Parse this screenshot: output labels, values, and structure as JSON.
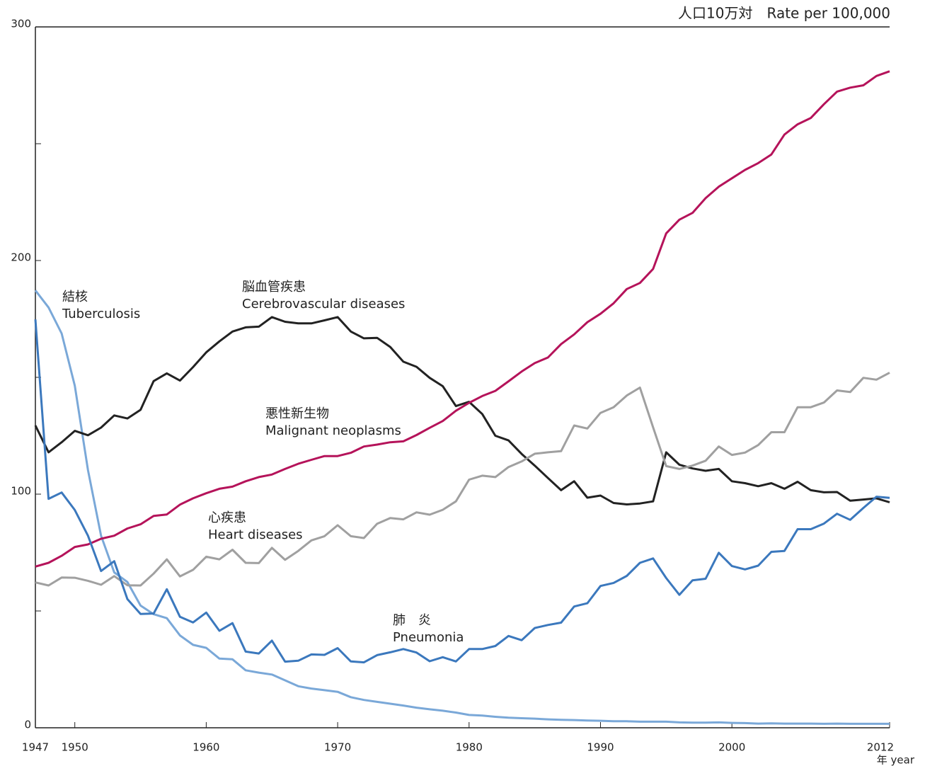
{
  "chart_data": {
    "type": "line",
    "y_unit": "人口10万対　Rate per 100,000",
    "x_unit": "年 year",
    "x": [
      1947,
      1948,
      1949,
      1950,
      1951,
      1952,
      1953,
      1954,
      1955,
      1956,
      1957,
      1958,
      1959,
      1960,
      1961,
      1962,
      1963,
      1964,
      1965,
      1966,
      1967,
      1968,
      1969,
      1970,
      1971,
      1972,
      1973,
      1974,
      1975,
      1976,
      1977,
      1978,
      1979,
      1980,
      1981,
      1982,
      1983,
      1984,
      1985,
      1986,
      1987,
      1988,
      1989,
      1990,
      1991,
      1992,
      1993,
      1994,
      1995,
      1996,
      1997,
      1998,
      1999,
      2000,
      2001,
      2002,
      2003,
      2004,
      2005,
      2006,
      2007,
      2008,
      2009,
      2010,
      2011,
      2012
    ],
    "xlim": [
      1947,
      2012
    ],
    "xticks": [
      1947,
      1950,
      1960,
      1970,
      1980,
      1990,
      2000,
      2012
    ],
    "ylim": [
      0,
      300
    ],
    "yticks": [
      0,
      100,
      200,
      300
    ],
    "yminorticks": [
      50,
      150,
      250
    ],
    "series": [
      {
        "name": "Tuberculosis",
        "name_ja": "結核",
        "color": "#7aa8d8",
        "values": [
          187.2,
          179.9,
          168.8,
          146.4,
          110.3,
          82.2,
          66.5,
          62.4,
          52.3,
          48.6,
          46.9,
          39.5,
          35.5,
          34.2,
          29.6,
          29.3,
          24.6,
          23.6,
          22.8,
          20.3,
          17.8,
          16.8,
          16.1,
          15.4,
          13.1,
          11.9,
          11.1,
          10.3,
          9.5,
          8.6,
          7.9,
          7.3,
          6.5,
          5.5,
          5.2,
          4.7,
          4.3,
          4.1,
          3.9,
          3.6,
          3.4,
          3.3,
          3.1,
          3.0,
          2.8,
          2.8,
          2.6,
          2.6,
          2.6,
          2.3,
          2.2,
          2.2,
          2.3,
          2.1,
          2.0,
          1.8,
          1.9,
          1.8,
          1.8,
          1.8,
          1.7,
          1.8,
          1.7,
          1.7,
          1.7,
          1.7
        ]
      },
      {
        "name": "Cerebrovascular diseases",
        "name_ja": "脳血管疾患",
        "color": "#222222",
        "values": [
          129.4,
          117.9,
          122.2,
          127.1,
          125.2,
          128.5,
          133.7,
          132.4,
          136.1,
          148.4,
          151.7,
          148.6,
          154.4,
          160.7,
          165.4,
          169.6,
          171.4,
          171.7,
          175.8,
          173.8,
          173.1,
          173.1,
          174.4,
          175.8,
          169.6,
          166.7,
          166.9,
          163.0,
          156.7,
          154.5,
          149.8,
          146.2,
          137.7,
          139.5,
          134.3,
          125.0,
          123.0,
          117.2,
          112.2,
          106.9,
          101.7,
          105.5,
          98.5,
          99.4,
          96.2,
          95.6,
          96.0,
          96.9,
          117.9,
          112.6,
          111.0,
          110.0,
          110.8,
          105.5,
          104.7,
          103.4,
          104.7,
          102.3,
          105.3,
          101.7,
          100.8,
          100.9,
          97.2,
          97.7,
          98.2,
          96.5
        ]
      },
      {
        "name": "Malignant neoplasms",
        "name_ja": "悪性新生物",
        "color": "#b5135a",
        "values": [
          69.0,
          70.6,
          73.6,
          77.4,
          78.5,
          80.9,
          82.2,
          85.3,
          87.1,
          90.7,
          91.3,
          95.5,
          98.2,
          100.4,
          102.3,
          103.2,
          105.5,
          107.3,
          108.4,
          110.8,
          113.0,
          114.7,
          116.3,
          116.3,
          117.7,
          120.4,
          121.2,
          122.2,
          122.6,
          125.3,
          128.4,
          131.3,
          135.7,
          139.1,
          142.0,
          144.2,
          148.3,
          152.5,
          156.1,
          158.5,
          164.2,
          168.4,
          173.6,
          177.2,
          181.7,
          187.8,
          190.4,
          196.4,
          211.6,
          217.5,
          220.4,
          226.7,
          231.6,
          235.2,
          238.8,
          241.7,
          245.4,
          253.9,
          258.3,
          261.0,
          266.9,
          272.3,
          274.0,
          275.0,
          279.0,
          281.0
        ]
      },
      {
        "name": "Heart diseases",
        "name_ja": "心疾患",
        "color": "#a0a0a0",
        "values": [
          62.2,
          60.9,
          64.3,
          64.2,
          62.9,
          61.2,
          64.9,
          61.0,
          60.9,
          66.0,
          72.1,
          64.8,
          67.6,
          73.2,
          72.1,
          76.2,
          70.6,
          70.5,
          77.0,
          71.9,
          75.7,
          80.2,
          82.0,
          86.7,
          82.0,
          81.2,
          87.3,
          89.8,
          89.2,
          92.2,
          91.2,
          93.3,
          96.9,
          106.2,
          107.9,
          107.3,
          111.6,
          114.0,
          117.3,
          117.9,
          118.4,
          129.4,
          128.1,
          134.8,
          137.2,
          142.2,
          145.6,
          128.6,
          112.0,
          110.8,
          112.2,
          114.3,
          120.4,
          116.8,
          117.8,
          121.0,
          126.5,
          126.5,
          137.2,
          137.2,
          139.2,
          144.4,
          143.7,
          149.8,
          149.0,
          152.0
        ]
      },
      {
        "name": "Pneumonia",
        "name_ja": "肺　炎",
        "color": "#3b78bd",
        "values": [
          174.8,
          98.0,
          100.7,
          93.2,
          82.2,
          67.1,
          71.3,
          55.1,
          48.7,
          48.9,
          59.3,
          47.5,
          45.1,
          49.3,
          41.5,
          44.8,
          32.6,
          31.8,
          37.3,
          28.3,
          28.7,
          31.4,
          31.2,
          34.1,
          28.4,
          28.0,
          31.1,
          32.3,
          33.7,
          32.2,
          28.5,
          30.2,
          28.4,
          33.7,
          33.7,
          35.0,
          39.3,
          37.5,
          42.7,
          44.0,
          45.0,
          51.9,
          53.3,
          60.7,
          62.0,
          65.0,
          70.6,
          72.5,
          64.1,
          56.9,
          63.1,
          63.8,
          74.9,
          69.2,
          67.8,
          69.4,
          75.3,
          75.7,
          85.0,
          85.0,
          87.4,
          91.6,
          89.0,
          94.1,
          98.9,
          98.4
        ]
      }
    ]
  }
}
